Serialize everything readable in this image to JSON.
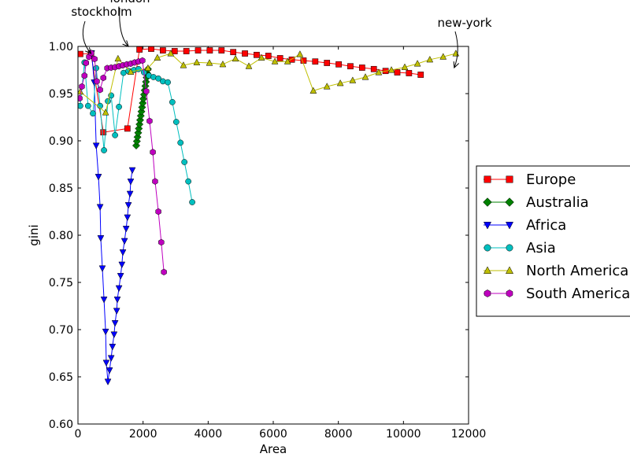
{
  "chart_data": {
    "type": "line",
    "x_label": "Area",
    "y_label": "gini",
    "xlim": [
      0,
      12000
    ],
    "ylim": [
      0.6,
      1.0
    ],
    "xticks": [
      0,
      2000,
      4000,
      6000,
      8000,
      10000,
      12000
    ],
    "yticks": [
      {
        "value": 0.6,
        "label": "0.60"
      },
      0.65,
      {
        "value": 0.7,
        "label": "0.70"
      },
      0.75,
      {
        "value": 0.8,
        "label": "0.80"
      },
      0.85,
      {
        "value": 0.9,
        "label": "0.90"
      },
      0.95,
      {
        "value": 1.0,
        "label": "1.00"
      }
    ],
    "legend": "outside right",
    "series": [
      {
        "name": "Europe",
        "color": "#ff0000",
        "marker": "square",
        "x": [
          70,
          400,
          780,
          1520,
          1890,
          2250,
          2610,
          2970,
          3330,
          3690,
          4050,
          4410,
          4770,
          5130,
          5490,
          5850,
          6210,
          6570,
          6930,
          7290,
          7650,
          8010,
          8370,
          8730,
          9090,
          9450,
          9810,
          10170,
          10530
        ],
        "values": [
          0.992,
          0.9925,
          0.909,
          0.913,
          0.9967,
          0.9975,
          0.9958,
          0.995,
          0.995,
          0.9958,
          0.9958,
          0.9958,
          0.994,
          0.9925,
          0.991,
          0.99,
          0.9875,
          0.986,
          0.985,
          0.984,
          0.9825,
          0.981,
          0.979,
          0.9775,
          0.976,
          0.974,
          0.9725,
          0.9717,
          0.97
        ]
      },
      {
        "name": "Australia",
        "color": "#008000",
        "marker": "diamond",
        "x": [
          1790,
          1810,
          1830,
          1850,
          1870,
          1890,
          1910,
          1930,
          1950,
          1970,
          1990,
          2010,
          2030,
          2050,
          2070,
          2090,
          2110,
          2130,
          2150
        ],
        "values": [
          0.895,
          0.8995,
          0.904,
          0.9085,
          0.913,
          0.9175,
          0.922,
          0.9265,
          0.931,
          0.9355,
          0.94,
          0.9445,
          0.949,
          0.9535,
          0.958,
          0.9625,
          0.967,
          0.9715,
          0.976
        ]
      },
      {
        "name": "Africa",
        "color": "#0000ff",
        "marker": "triangle-down",
        "x": [
          420,
          500,
          560,
          630,
          680,
          700,
          750,
          800,
          850,
          870,
          920,
          970,
          1020,
          1060,
          1110,
          1140,
          1190,
          1210,
          1260,
          1310,
          1350,
          1380,
          1430,
          1480,
          1520,
          1550,
          1600,
          1620,
          1670
        ],
        "values": [
          0.993,
          0.962,
          0.895,
          0.862,
          0.83,
          0.797,
          0.765,
          0.732,
          0.698,
          0.665,
          0.645,
          0.657,
          0.67,
          0.682,
          0.695,
          0.707,
          0.72,
          0.732,
          0.744,
          0.757,
          0.769,
          0.782,
          0.794,
          0.807,
          0.819,
          0.832,
          0.844,
          0.857,
          0.869
        ]
      },
      {
        "name": "Asia",
        "color": "#00bfbf",
        "marker": "circle",
        "x": [
          70,
          200,
          310,
          460,
          560,
          680,
          800,
          920,
          1020,
          1140,
          1260,
          1400,
          1550,
          1720,
          1860,
          2030,
          2180,
          2320,
          2470,
          2610,
          2760,
          2900,
          3020,
          3150,
          3270,
          3390,
          3510
        ],
        "values": [
          0.937,
          0.983,
          0.937,
          0.929,
          0.977,
          0.937,
          0.89,
          0.942,
          0.948,
          0.906,
          0.936,
          0.972,
          0.974,
          0.975,
          0.976,
          0.9725,
          0.969,
          0.9675,
          0.966,
          0.963,
          0.962,
          0.941,
          0.92,
          0.898,
          0.8775,
          0.857,
          0.835
        ]
      },
      {
        "name": "North America",
        "color": "#bfbf00",
        "marker": "triangle-up",
        "x": [
          70,
          850,
          1230,
          1620,
          2150,
          2440,
          2850,
          3240,
          3650,
          4040,
          4450,
          4840,
          5250,
          5640,
          6050,
          6440,
          6820,
          7230,
          7650,
          8060,
          8440,
          8830,
          9240,
          9630,
          10040,
          10430,
          10810,
          11220,
          11610
        ],
        "values": [
          0.952,
          0.93,
          0.987,
          0.973,
          0.977,
          0.988,
          0.9925,
          0.98,
          0.983,
          0.9825,
          0.981,
          0.987,
          0.979,
          0.988,
          0.984,
          0.984,
          0.9917,
          0.953,
          0.9575,
          0.961,
          0.964,
          0.9675,
          0.9725,
          0.975,
          0.978,
          0.9817,
          0.986,
          0.989,
          0.9925
        ]
      },
      {
        "name": "South America",
        "color": "#bf00bf",
        "marker": "hexagon",
        "x": [
          50,
          120,
          200,
          250,
          340,
          410,
          510,
          580,
          680,
          780,
          900,
          1020,
          1140,
          1260,
          1380,
          1500,
          1620,
          1740,
          1860,
          1980,
          2100,
          2200,
          2300,
          2370,
          2470,
          2560,
          2640
        ],
        "values": [
          0.945,
          0.9575,
          0.969,
          0.9825,
          0.989,
          0.993,
          0.9867,
          0.963,
          0.954,
          0.9667,
          0.977,
          0.9775,
          0.978,
          0.979,
          0.98,
          0.981,
          0.9817,
          0.983,
          0.984,
          0.985,
          0.9525,
          0.921,
          0.888,
          0.857,
          0.825,
          0.7925,
          0.761
        ]
      }
    ],
    "annotations": [
      {
        "text": "stockholm",
        "x": 400,
        "y": 0.9925
      },
      {
        "text": "london",
        "x": 1550,
        "y": 1.0
      },
      {
        "text": "new-york",
        "x": 11560,
        "y": 0.9775
      }
    ]
  }
}
